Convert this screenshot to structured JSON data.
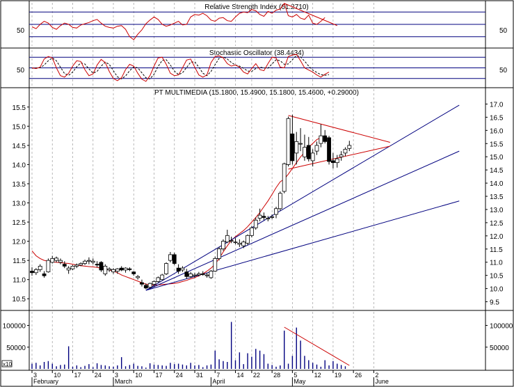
{
  "chart_data": [
    {
      "type": "line",
      "title": "Relative Strength Index (61.2710)",
      "ylim": [
        15,
        85
      ],
      "reference_lines": [
        30,
        50,
        70
      ],
      "y_tick_label": "50",
      "series": [
        {
          "values": [
            46,
            43,
            50,
            55,
            52,
            45,
            42,
            48,
            52,
            50,
            45,
            44,
            49,
            51,
            53,
            56,
            58,
            52,
            47,
            45,
            44,
            47,
            48,
            42,
            30,
            25,
            34,
            41,
            51,
            57,
            62,
            58,
            50,
            47,
            49,
            52,
            55,
            49,
            50,
            62,
            66,
            65,
            68,
            64,
            57,
            55,
            60,
            61,
            56,
            55,
            62,
            68,
            70,
            69,
            74,
            72,
            66,
            63,
            71,
            68,
            73,
            75,
            84,
            64,
            62,
            66,
            60,
            58,
            65,
            52,
            50,
            55,
            61
          ]
        }
      ],
      "trend_lines": [
        {
          "color": "#cc0000",
          "from": {
            "day": 62,
            "value": 84
          },
          "to": {
            "day": 75,
            "value": 48
          }
        }
      ],
      "colors": {
        "series": "#cc0000",
        "reference": "#00007f",
        "grid": "#a0a0a0"
      }
    },
    {
      "type": "line",
      "title": "Stochastic Oscillator (38.4434)",
      "ylim": [
        0,
        100
      ],
      "reference_lines": [
        20,
        50,
        80
      ],
      "y_tick_label": "50",
      "series": [
        {
          "line_style": "solid",
          "values": [
            50,
            48,
            52,
            75,
            82,
            78,
            50,
            28,
            24,
            35,
            55,
            70,
            68,
            45,
            28,
            33,
            58,
            74,
            65,
            40,
            20,
            14,
            22,
            45,
            60,
            55,
            35,
            18,
            12,
            28,
            55,
            78,
            80,
            60,
            35,
            28,
            30,
            50,
            72,
            75,
            52,
            30,
            24,
            30,
            65,
            82,
            84,
            78,
            62,
            55,
            58,
            52,
            38,
            33,
            48,
            62,
            45,
            42,
            62,
            80,
            78,
            52,
            50,
            82,
            86,
            88,
            70,
            50,
            44,
            38,
            30,
            24,
            32,
            38
          ]
        },
        {
          "line_style": "dashed",
          "values": [
            49,
            50,
            50,
            58,
            70,
            78,
            70,
            52,
            34,
            29,
            38,
            53,
            64,
            61,
            47,
            35,
            40,
            55,
            66,
            60,
            42,
            25,
            19,
            27,
            42,
            53,
            50,
            36,
            22,
            19,
            32,
            54,
            71,
            73,
            58,
            41,
            31,
            36,
            51,
            66,
            67,
            52,
            35,
            28,
            40,
            59,
            77,
            81,
            75,
            65,
            58,
            55,
            49,
            41,
            40,
            48,
            52,
            50,
            49,
            61,
            73,
            70,
            60,
            61,
            73,
            85,
            81,
            69,
            55,
            44,
            37,
            31,
            29,
            31
          ]
        }
      ],
      "colors": {
        "series": "#cc0000",
        "reference": "#00007f",
        "grid": "#a0a0a0"
      }
    },
    {
      "type": "candlestick",
      "title": "PT MULTIMEDIA (15.1800, 15.4900, 15.1800, 15.4600, +0.29000)",
      "ylim": [
        10.25,
        15.75
      ],
      "left_ticks": [
        10.5,
        11.0,
        11.5,
        12.0,
        12.5,
        13.0,
        13.5,
        14.0,
        14.5,
        15.0,
        15.5
      ],
      "left_tick_labels": [
        "10.5",
        "11.0",
        "11.5",
        "12.0",
        "12.5",
        "13.0",
        "13.5",
        "14.0",
        "14.5",
        "15.0",
        "15.5"
      ],
      "right_axis": {
        "ylim": [
          9.25,
          17.25
        ],
        "ticks": [
          9.5,
          10.0,
          10.5,
          11.0,
          11.5,
          12.0,
          12.5,
          13.0,
          13.5,
          14.0,
          14.5,
          15.0,
          15.5,
          16.0,
          16.5,
          17.0
        ],
        "tick_labels": [
          "9.5",
          "10.0",
          "10.5",
          "11.0",
          "11.5",
          "12.0",
          "12.5",
          "13.0",
          "13.5",
          "14.0",
          "14.5",
          "15.0",
          "15.5",
          "16.0",
          "16.5",
          "17.0"
        ]
      },
      "candles": [
        [
          11.22,
          11.32,
          11.1,
          11.18
        ],
        [
          11.18,
          11.3,
          11.12,
          11.26
        ],
        [
          11.26,
          11.4,
          11.2,
          11.35
        ],
        [
          11.15,
          11.22,
          11.05,
          11.1
        ],
        [
          11.2,
          11.55,
          11.18,
          11.5
        ],
        [
          11.45,
          11.62,
          11.42,
          11.55
        ],
        [
          11.5,
          11.6,
          11.45,
          11.56
        ],
        [
          11.45,
          11.55,
          11.4,
          11.5
        ],
        [
          11.4,
          11.48,
          11.3,
          11.35
        ],
        [
          11.25,
          11.35,
          11.15,
          11.3
        ],
        [
          11.28,
          11.38,
          11.25,
          11.35
        ],
        [
          11.35,
          11.42,
          11.3,
          11.38
        ],
        [
          11.38,
          11.45,
          11.35,
          11.42
        ],
        [
          11.42,
          11.52,
          11.38,
          11.48
        ],
        [
          11.48,
          11.58,
          11.4,
          11.5
        ],
        [
          11.45,
          11.55,
          11.4,
          11.48
        ],
        [
          11.4,
          11.48,
          11.32,
          11.38
        ],
        [
          11.45,
          11.48,
          11.2,
          11.25
        ],
        [
          11.15,
          11.4,
          11.1,
          11.35
        ],
        [
          11.25,
          11.32,
          11.2,
          11.28
        ],
        [
          11.2,
          11.3,
          11.15,
          11.26
        ],
        [
          11.22,
          11.3,
          11.15,
          11.28
        ],
        [
          11.3,
          11.35,
          11.22,
          11.25
        ],
        [
          11.25,
          11.32,
          11.18,
          11.3
        ],
        [
          11.28,
          11.32,
          11.22,
          11.26
        ],
        [
          11.2,
          11.22,
          11.1,
          11.15
        ],
        [
          11.05,
          11.12,
          11.0,
          11.08
        ],
        [
          10.92,
          11.0,
          10.82,
          10.88
        ],
        [
          10.85,
          10.9,
          10.75,
          10.78
        ],
        [
          10.8,
          10.92,
          10.76,
          10.9
        ],
        [
          10.88,
          10.98,
          10.82,
          10.95
        ],
        [
          10.95,
          11.08,
          10.92,
          11.05
        ],
        [
          11.0,
          11.15,
          10.98,
          11.12
        ],
        [
          11.15,
          11.45,
          11.12,
          11.42
        ],
        [
          11.5,
          11.72,
          11.45,
          11.65
        ],
        [
          11.65,
          11.7,
          11.38,
          11.42
        ],
        [
          11.3,
          11.4,
          11.15,
          11.22
        ],
        [
          11.25,
          11.35,
          11.2,
          11.3
        ],
        [
          11.2,
          11.28,
          11.02,
          11.08
        ],
        [
          11.08,
          11.2,
          11.05,
          11.15
        ],
        [
          11.1,
          11.18,
          11.05,
          11.12
        ],
        [
          11.12,
          11.2,
          11.08,
          11.15
        ],
        [
          11.15,
          11.22,
          11.1,
          11.14
        ],
        [
          11.1,
          11.18,
          11.05,
          11.12
        ],
        [
          11.05,
          11.25,
          11.02,
          11.22
        ],
        [
          11.22,
          11.6,
          11.2,
          11.55
        ],
        [
          11.55,
          11.85,
          11.5,
          11.8
        ],
        [
          11.8,
          12.05,
          11.75,
          12.0
        ],
        [
          11.98,
          12.3,
          11.95,
          12.15
        ],
        [
          12.0,
          12.12,
          11.95,
          12.02
        ],
        [
          11.98,
          12.08,
          11.92,
          11.98
        ],
        [
          11.92,
          12.05,
          11.85,
          11.95
        ],
        [
          11.88,
          12.02,
          11.82,
          11.98
        ],
        [
          11.95,
          12.18,
          11.9,
          12.15
        ],
        [
          12.15,
          12.4,
          12.1,
          12.35
        ],
        [
          12.35,
          12.62,
          12.3,
          12.55
        ],
        [
          12.6,
          12.85,
          12.52,
          12.68
        ],
        [
          12.65,
          12.75,
          12.55,
          12.62
        ],
        [
          12.58,
          12.66,
          12.52,
          12.6
        ],
        [
          12.62,
          12.7,
          12.58,
          12.64
        ],
        [
          12.7,
          12.9,
          12.6,
          12.85
        ],
        [
          12.85,
          13.3,
          12.8,
          13.25
        ],
        [
          13.3,
          14.05,
          13.25,
          14.02
        ],
        [
          14.0,
          15.25,
          13.95,
          15.2
        ],
        [
          14.8,
          15.3,
          14.0,
          14.1
        ],
        [
          14.3,
          14.85,
          14.0,
          14.6
        ],
        [
          14.55,
          14.95,
          14.35,
          14.55
        ],
        [
          14.2,
          14.78,
          14.1,
          14.45
        ],
        [
          14.5,
          14.72,
          14.08,
          14.15
        ],
        [
          14.1,
          14.4,
          13.95,
          14.3
        ],
        [
          14.35,
          14.6,
          14.25,
          14.5
        ],
        [
          14.55,
          15.05,
          14.45,
          14.75
        ],
        [
          14.75,
          14.9,
          14.55,
          14.6
        ],
        [
          14.7,
          14.75,
          14.0,
          14.08
        ],
        [
          14.1,
          14.3,
          13.9,
          14.05
        ],
        [
          14.05,
          14.25,
          13.92,
          14.15
        ],
        [
          14.2,
          14.35,
          14.1,
          14.25
        ],
        [
          14.3,
          14.45,
          14.22,
          14.4
        ],
        [
          14.42,
          14.62,
          14.35,
          14.5
        ]
      ],
      "overlay_lines": [
        {
          "color": "#cc0000",
          "kind": "moving_average",
          "values": [
            11.75,
            11.62,
            11.55,
            11.5,
            11.48,
            11.46,
            11.45,
            11.44,
            11.43,
            11.42,
            11.4,
            11.38,
            11.36,
            11.35,
            11.34,
            11.33,
            11.32,
            11.3,
            11.28,
            11.25,
            11.22,
            11.18,
            11.12,
            11.08,
            11.04,
            11.0,
            10.96,
            10.92,
            10.88,
            10.86,
            10.85,
            10.86,
            10.87,
            10.88,
            10.89,
            10.9,
            10.92,
            10.95,
            10.98,
            11.02,
            11.05,
            11.1,
            11.15,
            11.22,
            11.3,
            11.4,
            11.55,
            11.72,
            11.88,
            12.02,
            12.12,
            12.2,
            12.28,
            12.38,
            12.5,
            12.62,
            12.75,
            12.9,
            13.05,
            13.22,
            13.4,
            13.55,
            13.62,
            13.75,
            13.9,
            14.05,
            14.2,
            14.32,
            14.45,
            14.55,
            14.65,
            14.7
          ]
        },
        {
          "color": "#00007f",
          "kind": "trend_line",
          "from": {
            "day": 28,
            "price": 10.72
          },
          "to": {
            "day": 105,
            "price": 15.55
          }
        },
        {
          "color": "#00007f",
          "kind": "trend_line",
          "from": {
            "day": 28,
            "price": 10.72
          },
          "to": {
            "day": 105,
            "price": 14.35
          }
        },
        {
          "color": "#00007f",
          "kind": "trend_line",
          "from": {
            "day": 28,
            "price": 10.72
          },
          "to": {
            "day": 105,
            "price": 13.05
          }
        },
        {
          "color": "#cc0000",
          "kind": "triangle_upper",
          "from": {
            "day": 63,
            "price": 15.28
          },
          "to": {
            "day": 88,
            "price": 14.58
          }
        },
        {
          "color": "#cc0000",
          "kind": "triangle_lower",
          "from": {
            "day": 63,
            "price": 13.88
          },
          "to": {
            "day": 88,
            "price": 14.48
          }
        }
      ],
      "colors": {
        "up_fill": "#ffffff",
        "down_fill": "#000000",
        "grid": "#a0a0a0",
        "frame": "#000000"
      }
    },
    {
      "type": "bar",
      "ylim": [
        0,
        120000
      ],
      "y_ticks": [
        50000,
        100000
      ],
      "y_tick_labels": [
        "50000",
        "100000"
      ],
      "unit_label": "x10",
      "values": [
        12000,
        14000,
        8000,
        16000,
        18000,
        12000,
        6000,
        9000,
        10000,
        52000,
        5000,
        8000,
        4000,
        7000,
        11000,
        4000,
        13000,
        9000,
        8000,
        6000,
        5000,
        8000,
        27000,
        6000,
        9000,
        12000,
        7000,
        6000,
        3000,
        13000,
        10000,
        9000,
        8000,
        7000,
        14000,
        11000,
        12000,
        10000,
        8000,
        14000,
        8000,
        9000,
        4000,
        8000,
        10000,
        42000,
        22000,
        18000,
        16000,
        108000,
        20000,
        38000,
        11000,
        36000,
        28000,
        46000,
        42000,
        34000,
        12000,
        9000,
        5000,
        8000,
        88000,
        12000,
        30000,
        95000,
        65000,
        30000,
        20000,
        14000,
        10000,
        5000,
        20000,
        8000,
        18000,
        12000,
        9000,
        6000
      ],
      "trend_lines": [
        {
          "color": "#cc0000",
          "from": {
            "day": 62,
            "volume": 96000
          },
          "to": {
            "day": 78,
            "volume": 8000
          }
        }
      ],
      "colors": {
        "bars": "#00007f",
        "grid": "#a0a0a0"
      }
    }
  ],
  "x_axis": {
    "day_ticks": [
      {
        "day": 0,
        "label": "3"
      },
      {
        "day": 5,
        "label": "10"
      },
      {
        "day": 10,
        "label": "17"
      },
      {
        "day": 15,
        "label": "24"
      },
      {
        "day": 20,
        "label": "3"
      },
      {
        "day": 25,
        "label": "10"
      },
      {
        "day": 30,
        "label": "17"
      },
      {
        "day": 35,
        "label": "24"
      },
      {
        "day": 40,
        "label": "31"
      },
      {
        "day": 45,
        "label": "7"
      },
      {
        "day": 50,
        "label": "14"
      },
      {
        "day": 54,
        "label": "22"
      },
      {
        "day": 59,
        "label": "28"
      },
      {
        "day": 64,
        "label": "5"
      },
      {
        "day": 69,
        "label": "12"
      },
      {
        "day": 74,
        "label": "19"
      },
      {
        "day": 79,
        "label": "26"
      },
      {
        "day": 84,
        "label": "2"
      }
    ],
    "months": [
      {
        "day": 0,
        "label": "February"
      },
      {
        "day": 20,
        "label": "March"
      },
      {
        "day": 44,
        "label": "April"
      },
      {
        "day": 64,
        "label": "May"
      },
      {
        "day": 84,
        "label": "June"
      }
    ]
  }
}
